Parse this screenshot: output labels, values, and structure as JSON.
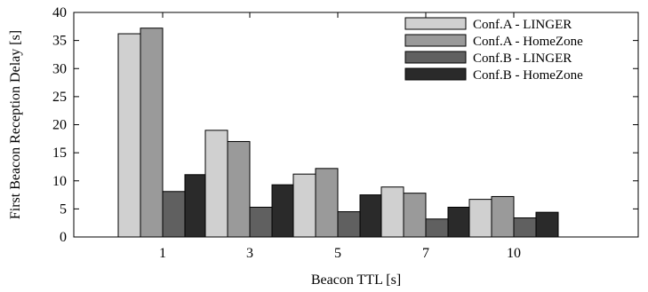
{
  "chart_data": {
    "type": "bar",
    "xlabel": "Beacon TTL [s]",
    "ylabel": "First Beacon Reception Delay [s]",
    "categories": [
      "1",
      "3",
      "5",
      "7",
      "10"
    ],
    "ylim": [
      0,
      40
    ],
    "yticks": [
      "0",
      "5",
      "10",
      "15",
      "20",
      "25",
      "30",
      "35",
      "40"
    ],
    "grid": false,
    "legend_position": "top-right",
    "series": [
      {
        "name": "Conf.A - LINGER",
        "color": "#d0d0d0",
        "values": [
          36.2,
          19.0,
          11.2,
          8.9,
          6.7
        ]
      },
      {
        "name": "Conf.A - HomeZone",
        "color": "#9a9a9a",
        "values": [
          37.2,
          17.0,
          12.2,
          7.8,
          7.2
        ]
      },
      {
        "name": "Conf.B - LINGER",
        "color": "#606060",
        "values": [
          8.1,
          5.3,
          4.5,
          3.2,
          3.4
        ]
      },
      {
        "name": "Conf.B - HomeZone",
        "color": "#2a2a2a",
        "values": [
          11.1,
          9.3,
          7.5,
          5.3,
          4.4
        ]
      }
    ]
  }
}
